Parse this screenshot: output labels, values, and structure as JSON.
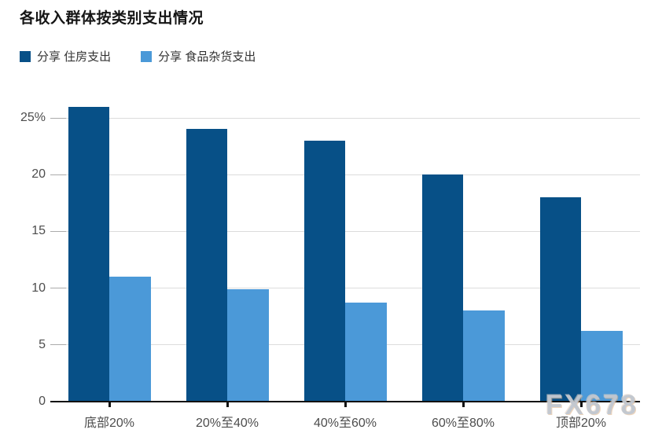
{
  "header": {
    "title": "各收入群体按类别支出情况"
  },
  "legend": {
    "items": [
      {
        "label": "分享 住房支出",
        "color": "#075087"
      },
      {
        "label": "分享 食品杂货支出",
        "color": "#4b99d8"
      }
    ]
  },
  "watermark": {
    "text": "FX678"
  },
  "chart_data": {
    "type": "bar",
    "title": "各收入群体按类别支出情况",
    "categories": [
      "底部20%",
      "20%至40%",
      "40%至60%",
      "60%至80%",
      "顶部20%"
    ],
    "series": [
      {
        "name": "分享 住房支出",
        "color": "#075087",
        "values": [
          26,
          24,
          23,
          20,
          18
        ]
      },
      {
        "name": "分享 食品杂货支出",
        "color": "#4b99d8",
        "values": [
          11,
          9.9,
          8.7,
          8,
          6.2
        ]
      }
    ],
    "xlabel": "",
    "ylabel": "",
    "ylim": [
      0,
      26.5
    ],
    "yticks": [
      0,
      5,
      10,
      15,
      20,
      25
    ],
    "ytick_labels": [
      "0",
      "5",
      "10",
      "15",
      "20",
      "25%"
    ],
    "grid": true,
    "legend_position": "top-left"
  },
  "colors": {
    "grid": "#dcdcdc",
    "tick_dash": "#ababab",
    "axis": "#111111",
    "tick_text": "#4d4d4d",
    "title_text": "#151515",
    "background": "#ffffff"
  }
}
